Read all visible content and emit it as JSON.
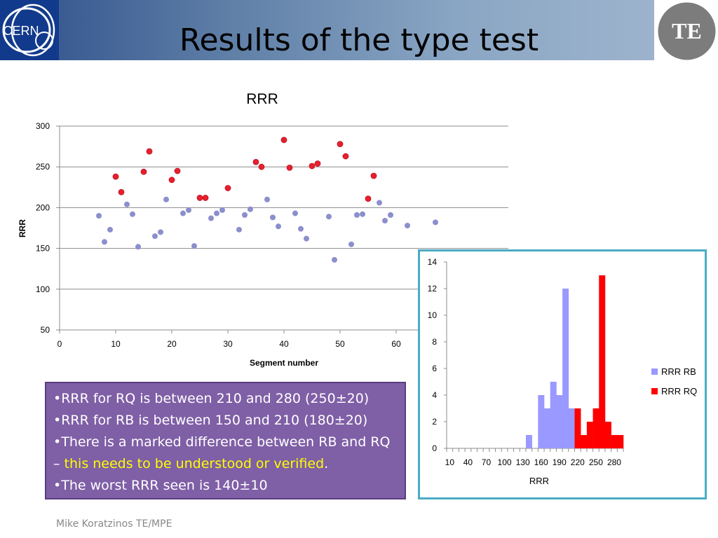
{
  "header": {
    "title": "Results of the type test",
    "cern_logo_text": "CERN",
    "te_logo_text": "TE"
  },
  "chart_data": [
    {
      "type": "scatter",
      "title": "RRR",
      "xlabel": "Segment number",
      "ylabel": "RRR",
      "xlim": [
        0,
        80
      ],
      "ylim": [
        50,
        300
      ],
      "x_ticks": [
        0,
        10,
        20,
        30,
        40,
        50,
        60
      ],
      "y_ticks": [
        50,
        100,
        150,
        200,
        250,
        300
      ],
      "grid": "horizontal",
      "series": [
        {
          "name": "",
          "color": "#8b8fcc",
          "points": [
            [
              7,
              190
            ],
            [
              8,
              158
            ],
            [
              9,
              173
            ],
            [
              12,
              204
            ],
            [
              13,
              192
            ],
            [
              14,
              152
            ],
            [
              17,
              165
            ],
            [
              18,
              170
            ],
            [
              19,
              210
            ],
            [
              22,
              193
            ],
            [
              23,
              197
            ],
            [
              24,
              153
            ],
            [
              27,
              187
            ],
            [
              28,
              193
            ],
            [
              29,
              197
            ],
            [
              32,
              173
            ],
            [
              33,
              191
            ],
            [
              34,
              198
            ],
            [
              37,
              210
            ],
            [
              38,
              188
            ],
            [
              39,
              177
            ],
            [
              42,
              193
            ],
            [
              43,
              174
            ],
            [
              44,
              162
            ],
            [
              48,
              189
            ],
            [
              49,
              136
            ],
            [
              52,
              155
            ],
            [
              53,
              191
            ],
            [
              54,
              192
            ],
            [
              57,
              206
            ],
            [
              58,
              184
            ],
            [
              59,
              191
            ],
            [
              62,
              178
            ],
            [
              67,
              182
            ]
          ]
        },
        {
          "name": "",
          "color": "#e8202a",
          "points": [
            [
              10,
              238
            ],
            [
              11,
              219
            ],
            [
              15,
              244
            ],
            [
              16,
              269
            ],
            [
              20,
              234
            ],
            [
              21,
              245
            ],
            [
              25,
              212
            ],
            [
              26,
              212
            ],
            [
              30,
              224
            ],
            [
              35,
              256
            ],
            [
              36,
              250
            ],
            [
              40,
              283
            ],
            [
              41,
              249
            ],
            [
              45,
              251
            ],
            [
              46,
              254
            ],
            [
              50,
              278
            ],
            [
              51,
              263
            ],
            [
              55,
              211
            ],
            [
              56,
              239
            ]
          ]
        }
      ]
    },
    {
      "type": "bar",
      "title": "",
      "xlabel": "RRR",
      "ylabel": "",
      "ylim": [
        0,
        14
      ],
      "y_ticks": [
        0,
        2,
        4,
        6,
        8,
        10,
        12,
        14
      ],
      "categories": [
        10,
        20,
        30,
        40,
        50,
        60,
        70,
        80,
        90,
        100,
        110,
        120,
        130,
        140,
        150,
        160,
        170,
        180,
        190,
        200,
        210,
        220,
        230,
        240,
        250,
        260,
        270,
        280,
        290
      ],
      "x_tick_labels": [
        "10",
        "40",
        "70",
        "100",
        "130",
        "160",
        "190",
        "220",
        "250",
        "280"
      ],
      "series": [
        {
          "name": "RRR RB",
          "color": "#9999ff",
          "values": [
            0,
            0,
            0,
            0,
            0,
            0,
            0,
            0,
            0,
            0,
            0,
            0,
            0,
            1,
            0,
            4,
            3,
            5,
            4,
            12,
            3,
            0,
            0,
            0,
            0,
            0,
            0,
            0,
            0
          ]
        },
        {
          "name": "RRR RQ",
          "color": "#ff0000",
          "values": [
            0,
            0,
            0,
            0,
            0,
            0,
            0,
            0,
            0,
            0,
            0,
            0,
            0,
            0,
            0,
            0,
            0,
            0,
            0,
            0,
            0,
            3,
            1,
            2,
            3,
            13,
            2,
            1,
            1
          ]
        }
      ],
      "legend_position": "right"
    }
  ],
  "bullets": {
    "b1": "•RRR for RQ is between 210 and 280 (250±20)",
    "b2": "•RRR for RB is between 150 and 210 (180±20)",
    "b3_part1": "•There is a marked difference between RB and RQ – ",
    "b3_highlight": "this needs to be understood or verified",
    "b3_part2": ".",
    "b4": "•The worst RRR seen is 140±10"
  },
  "footer": {
    "text": "Mike Koratzinos TE/MPE"
  }
}
